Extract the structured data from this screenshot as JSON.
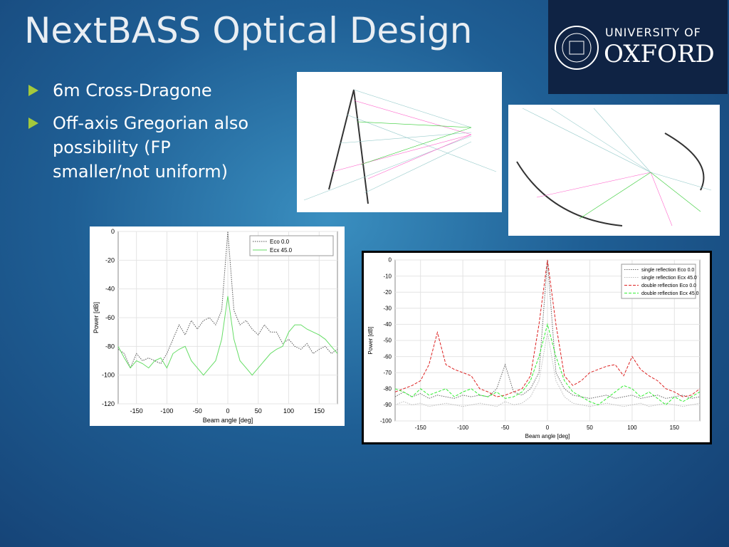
{
  "title": "NextBASS Optical Design",
  "bullets": [
    "6m Cross-Dragone",
    "Off-axis Gregorian also possibility (FP smaller/not uniform)"
  ],
  "logo": {
    "line1": "UNIVERSITY OF",
    "line2": "OXFORD"
  },
  "chart_data": [
    {
      "type": "line",
      "xlabel": "Beam angle [deg]",
      "ylabel": "Power [dB]",
      "xlim": [
        -180,
        180
      ],
      "xticks": [
        -150,
        -100,
        -50,
        0,
        50,
        100,
        150
      ],
      "ylim": [
        -120,
        0
      ],
      "yticks": [
        0,
        -20,
        -40,
        -60,
        -80,
        -100,
        -120
      ],
      "grid": true,
      "legend": "top-right",
      "x": [
        -180,
        -170,
        -160,
        -150,
        -140,
        -130,
        -120,
        -110,
        -100,
        -90,
        -80,
        -70,
        -60,
        -50,
        -40,
        -30,
        -20,
        -10,
        0,
        10,
        20,
        30,
        40,
        50,
        60,
        70,
        80,
        90,
        100,
        110,
        120,
        130,
        140,
        150,
        160,
        170,
        180
      ],
      "series": [
        {
          "name": "Eco 0.0",
          "color": "#555555",
          "style": "dotted",
          "values": [
            -82,
            -85,
            -95,
            -85,
            -90,
            -88,
            -90,
            -92,
            -85,
            -75,
            -65,
            -72,
            -62,
            -68,
            -62,
            -60,
            -65,
            -55,
            0,
            -55,
            -65,
            -62,
            -68,
            -72,
            -65,
            -70,
            -70,
            -78,
            -75,
            -80,
            -82,
            -78,
            -85,
            -82,
            -80,
            -85,
            -82
          ]
        },
        {
          "name": "Ecx 45.0",
          "color": "#66dd66",
          "style": "solid",
          "values": [
            -80,
            -88,
            -95,
            -90,
            -92,
            -95,
            -90,
            -88,
            -95,
            -85,
            -82,
            -80,
            -90,
            -95,
            -100,
            -95,
            -90,
            -75,
            -45,
            -75,
            -90,
            -95,
            -100,
            -95,
            -90,
            -85,
            -82,
            -80,
            -70,
            -65,
            -65,
            -68,
            -70,
            -72,
            -75,
            -80,
            -85
          ]
        }
      ]
    },
    {
      "type": "line",
      "xlabel": "Beam angle [deg]",
      "ylabel": "Power [dB]",
      "xlim": [
        -180,
        180
      ],
      "xticks": [
        -150,
        -100,
        -50,
        0,
        50,
        100,
        150
      ],
      "ylim": [
        -100,
        0
      ],
      "yticks": [
        0,
        -10,
        -20,
        -30,
        -40,
        -50,
        -60,
        -70,
        -80,
        -90,
        -100
      ],
      "grid": true,
      "legend": "top-right",
      "x": [
        -180,
        -170,
        -160,
        -150,
        -140,
        -130,
        -120,
        -110,
        -100,
        -90,
        -80,
        -70,
        -60,
        -50,
        -40,
        -30,
        -20,
        -10,
        0,
        10,
        20,
        30,
        40,
        50,
        60,
        70,
        80,
        90,
        100,
        110,
        120,
        130,
        140,
        150,
        160,
        170,
        180
      ],
      "series": [
        {
          "name": "single reflection Eco 0.0",
          "color": "#666666",
          "style": "dotted",
          "values": [
            -85,
            -82,
            -85,
            -83,
            -86,
            -84,
            -85,
            -86,
            -84,
            -85,
            -84,
            -85,
            -80,
            -65,
            -82,
            -84,
            -80,
            -70,
            0,
            -70,
            -80,
            -84,
            -85,
            -86,
            -85,
            -84,
            -86,
            -85,
            -84,
            -86,
            -85,
            -84,
            -86,
            -85,
            -84,
            -86,
            -85
          ]
        },
        {
          "name": "single reflection Ecx 45.0",
          "color": "#bbbbbb",
          "style": "dotted",
          "values": [
            -90,
            -88,
            -90,
            -89,
            -91,
            -90,
            -89,
            -90,
            -91,
            -90,
            -89,
            -90,
            -91,
            -88,
            -90,
            -89,
            -85,
            -75,
            -45,
            -75,
            -85,
            -89,
            -90,
            -91,
            -90,
            -89,
            -90,
            -91,
            -90,
            -89,
            -91,
            -90,
            -89,
            -90,
            -91,
            -90,
            -89
          ]
        },
        {
          "name": "double reflection Eco 0.0",
          "color": "#dd2222",
          "style": "dashed",
          "values": [
            -82,
            -80,
            -78,
            -75,
            -65,
            -45,
            -65,
            -68,
            -70,
            -72,
            -80,
            -82,
            -85,
            -84,
            -82,
            -80,
            -72,
            -40,
            0,
            -40,
            -72,
            -78,
            -75,
            -70,
            -68,
            -66,
            -65,
            -72,
            -60,
            -68,
            -72,
            -75,
            -80,
            -82,
            -85,
            -84,
            -80
          ]
        },
        {
          "name": "double reflection Ecx 45.0",
          "color": "#33ee33",
          "style": "dashed",
          "values": [
            -80,
            -82,
            -85,
            -80,
            -84,
            -82,
            -80,
            -85,
            -82,
            -80,
            -84,
            -85,
            -82,
            -86,
            -85,
            -82,
            -75,
            -60,
            -40,
            -60,
            -75,
            -82,
            -85,
            -88,
            -90,
            -86,
            -82,
            -78,
            -80,
            -85,
            -82,
            -86,
            -90,
            -85,
            -88,
            -85,
            -82
          ]
        }
      ]
    }
  ]
}
